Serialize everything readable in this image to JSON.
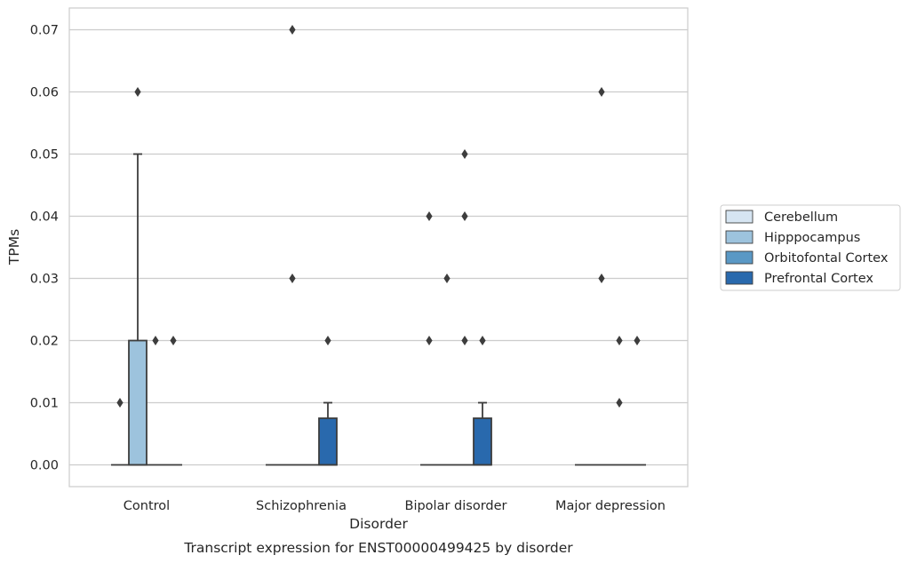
{
  "chart_data": {
    "type": "box",
    "title": "Transcript expression for ENST00000499425 by disorder",
    "xlabel": "Disorder",
    "ylabel": "TPMs",
    "categories": [
      "Control",
      "Schizophrenia",
      "Bipolar disorder",
      "Major depression"
    ],
    "ylim": [
      -0.0035,
      0.0735
    ],
    "yticks": [
      "0.00",
      "0.01",
      "0.02",
      "0.03",
      "0.04",
      "0.05",
      "0.06",
      "0.07"
    ],
    "grid": true,
    "legend_position": "right",
    "series": [
      {
        "name": "Cerebellum",
        "color": "#d6e5f2",
        "boxes": [
          {
            "q1": 0,
            "median": 0,
            "q3": 0,
            "whisker_low": 0,
            "whisker_high": 0,
            "outliers": [
              0.01
            ]
          },
          {
            "q1": 0,
            "median": 0,
            "q3": 0,
            "whisker_low": 0,
            "whisker_high": 0,
            "outliers": []
          },
          {
            "q1": 0,
            "median": 0,
            "q3": 0,
            "whisker_low": 0,
            "whisker_high": 0,
            "outliers": [
              0.02,
              0.04
            ]
          },
          {
            "q1": 0,
            "median": 0,
            "q3": 0,
            "whisker_low": 0,
            "whisker_high": 0,
            "outliers": []
          }
        ]
      },
      {
        "name": "Hipppocampus",
        "color": "#9dc3dd",
        "boxes": [
          {
            "q1": 0,
            "median": 0,
            "q3": 0.02,
            "whisker_low": 0,
            "whisker_high": 0.05,
            "outliers": [
              0.06
            ]
          },
          {
            "q1": 0,
            "median": 0,
            "q3": 0,
            "whisker_low": 0,
            "whisker_high": 0,
            "outliers": [
              0.03,
              0.07
            ]
          },
          {
            "q1": 0,
            "median": 0,
            "q3": 0,
            "whisker_low": 0,
            "whisker_high": 0,
            "outliers": [
              0.03
            ]
          },
          {
            "q1": 0,
            "median": 0,
            "q3": 0,
            "whisker_low": 0,
            "whisker_high": 0,
            "outliers": [
              0.03,
              0.06
            ]
          }
        ]
      },
      {
        "name": "Orbitofontal Cortex",
        "color": "#5a98c5",
        "boxes": [
          {
            "q1": 0,
            "median": 0,
            "q3": 0,
            "whisker_low": 0,
            "whisker_high": 0,
            "outliers": [
              0.02
            ]
          },
          {
            "q1": 0,
            "median": 0,
            "q3": 0,
            "whisker_low": 0,
            "whisker_high": 0,
            "outliers": []
          },
          {
            "q1": 0,
            "median": 0,
            "q3": 0,
            "whisker_low": 0,
            "whisker_high": 0,
            "outliers": [
              0.02,
              0.04,
              0.05
            ]
          },
          {
            "q1": 0,
            "median": 0,
            "q3": 0,
            "whisker_low": 0,
            "whisker_high": 0,
            "outliers": [
              0.01,
              0.02
            ]
          }
        ]
      },
      {
        "name": "Prefrontal Cortex",
        "color": "#2969ad",
        "boxes": [
          {
            "q1": 0,
            "median": 0,
            "q3": 0,
            "whisker_low": 0,
            "whisker_high": 0,
            "outliers": [
              0.02
            ]
          },
          {
            "q1": 0,
            "median": 0,
            "q3": 0.0075,
            "whisker_low": 0,
            "whisker_high": 0.01,
            "outliers": [
              0.02
            ]
          },
          {
            "q1": 0,
            "median": 0,
            "q3": 0.0075,
            "whisker_low": 0,
            "whisker_high": 0.01,
            "outliers": [
              0.02
            ]
          },
          {
            "q1": 0,
            "median": 0,
            "q3": 0,
            "whisker_low": 0,
            "whisker_high": 0,
            "outliers": [
              0.02
            ]
          }
        ]
      }
    ]
  }
}
